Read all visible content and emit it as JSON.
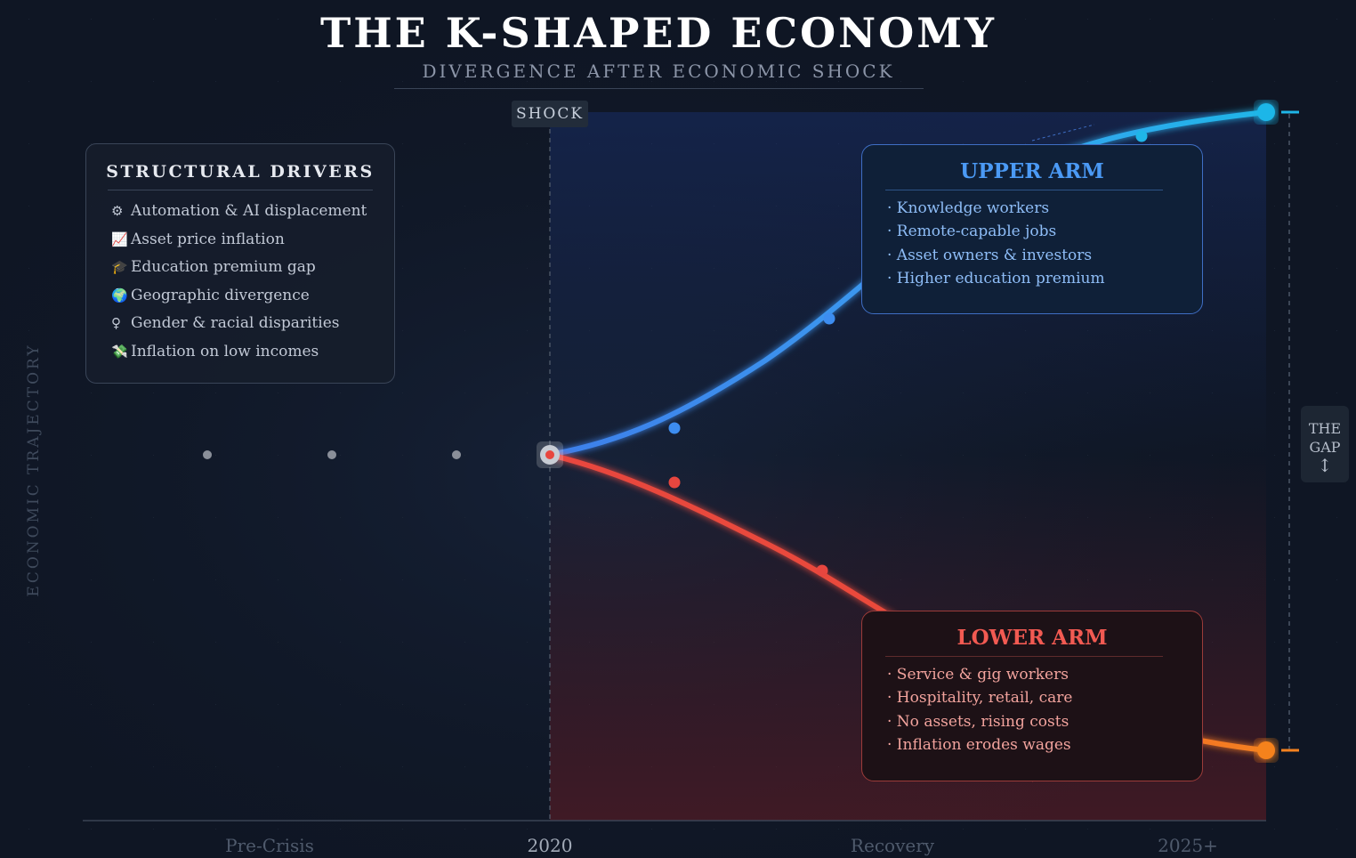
{
  "header": {
    "title": "THE K-SHAPED ECONOMY",
    "subtitle": "DIVERGENCE AFTER ECONOMIC SHOCK"
  },
  "shock_label": "SHOCK",
  "y_axis_label": "ECONOMIC TRAJECTORY",
  "x_axis_labels": [
    "Pre-Crisis",
    "2020",
    "Recovery",
    "2025+"
  ],
  "drivers": {
    "title": "STRUCTURAL DRIVERS",
    "items": [
      {
        "icon": "⚙",
        "icon_name": "gear-icon",
        "label": "Automation & AI displacement"
      },
      {
        "icon": "📈",
        "icon_name": "chart-up-icon",
        "label": "Asset price inflation"
      },
      {
        "icon": "🎓",
        "icon_name": "graduation-cap-icon",
        "label": "Education premium gap"
      },
      {
        "icon": "🌍",
        "icon_name": "globe-icon",
        "label": "Geographic divergence"
      },
      {
        "icon": "♀",
        "icon_name": "female-sign-icon",
        "label": "Gender & racial disparities"
      },
      {
        "icon": "💸",
        "icon_name": "money-flying-icon",
        "label": "Inflation on low incomes"
      }
    ]
  },
  "upper_arm": {
    "title": "UPPER ARM",
    "items": [
      "· Knowledge workers",
      "· Remote-capable jobs",
      "· Asset owners & investors",
      "· Higher education premium"
    ]
  },
  "lower_arm": {
    "title": "LOWER ARM",
    "items": [
      "· Service & gig workers",
      "· Hospitality, retail, care",
      "· No assets, rising costs",
      "· Inflation erodes wages"
    ]
  },
  "gap_label": {
    "line1": "THE",
    "line2": "GAP",
    "arrow": "↕"
  },
  "colors": {
    "background": "#0f1624",
    "upper_line": "#3d8df0",
    "upper_end": "#1fb6e8",
    "lower_line": "#e8463f",
    "lower_end": "#f5821f",
    "neutral_dot": "#8a8f99"
  }
}
